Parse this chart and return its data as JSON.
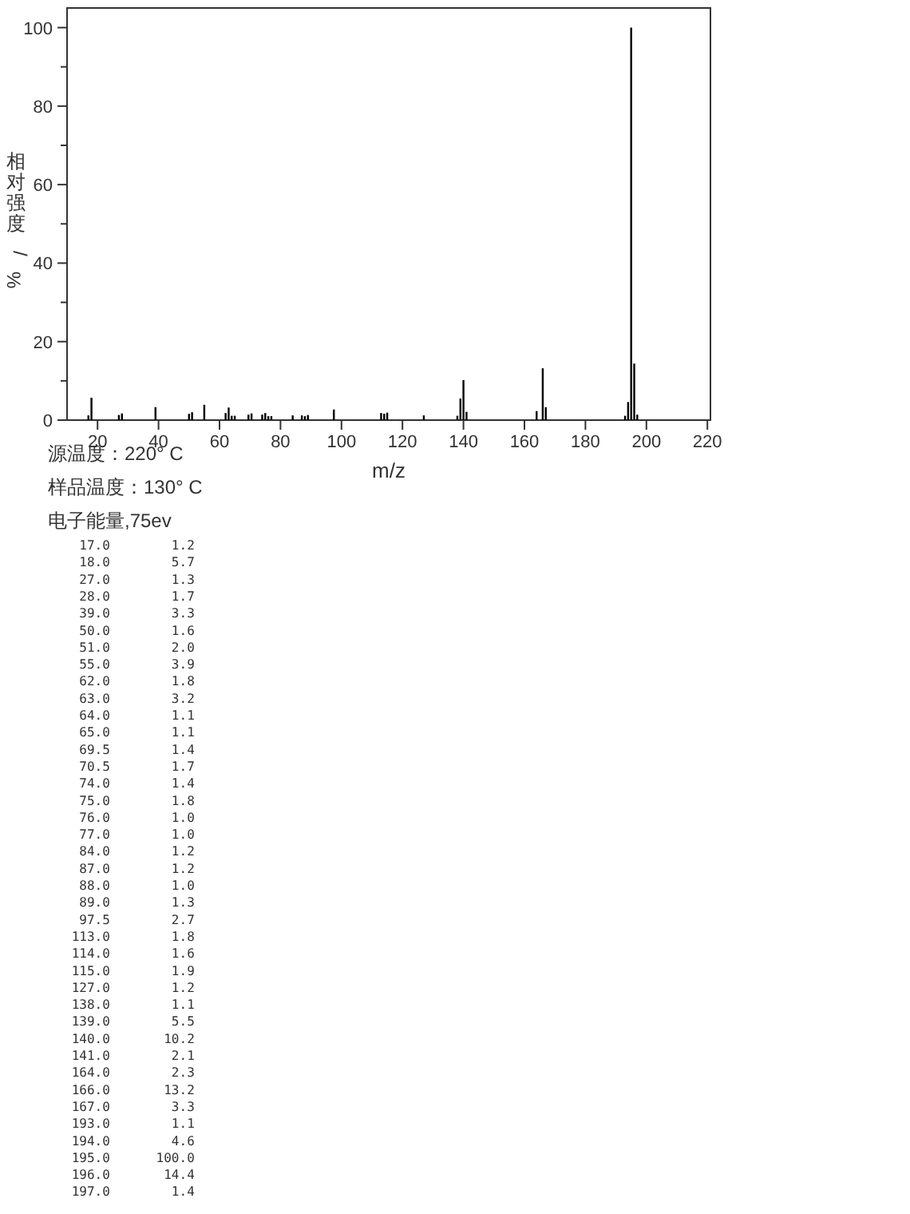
{
  "chart_data": {
    "type": "bar",
    "xlabel": "m/z",
    "ylabel": "相对强度/%",
    "x": [
      17,
      18,
      27,
      28,
      39,
      50,
      51,
      55,
      62,
      63,
      64,
      65,
      69.5,
      70.5,
      74,
      75,
      76,
      77,
      84,
      87,
      88,
      89,
      97.5,
      113,
      114,
      115,
      127,
      138,
      139,
      140,
      141,
      164,
      166,
      167,
      193,
      194,
      195,
      196,
      197
    ],
    "values": [
      1.2,
      5.7,
      1.3,
      1.7,
      3.3,
      1.6,
      2.0,
      3.9,
      1.8,
      3.2,
      1.1,
      1.1,
      1.4,
      1.7,
      1.4,
      1.8,
      1.0,
      1.0,
      1.2,
      1.2,
      1.0,
      1.3,
      2.7,
      1.8,
      1.6,
      1.9,
      1.2,
      1.1,
      5.5,
      10.2,
      2.1,
      2.3,
      13.2,
      3.3,
      1.1,
      4.6,
      100.0,
      14.4,
      1.4
    ],
    "color": "#000000",
    "xlim": [
      10,
      221
    ],
    "xticks": [
      20,
      40,
      60,
      80,
      100,
      120,
      140,
      160,
      180,
      200,
      220
    ],
    "ylim": [
      0,
      105
    ],
    "yticks": [
      0,
      {
        "value": 10,
        "label": null
      },
      20,
      {
        "value": 30,
        "label": null
      },
      40,
      {
        "value": 50,
        "label": null
      },
      60,
      {
        "value": 70,
        "label": null
      },
      80,
      {
        "value": 90,
        "label": null
      },
      100
    ],
    "annotations": [
      "源温度：220° C",
      "样品温度：130° C",
      "电子能量,75ev",
      "17.0        1.2",
      "18.0        5.7",
      "27.0        1.3",
      "28.0        1.7",
      "39.0        3.3",
      "50.0        1.6",
      "51.0        2.0",
      "55.0        3.9",
      "62.0        1.8",
      "63.0        3.2",
      "64.0        1.1",
      "65.0        1.1",
      "69.5        1.4",
      "70.5        1.7",
      "74.0        1.4",
      "75.0        1.8",
      "76.0        1.0",
      "77.0        1.0",
      "84.0        1.2",
      "87.0        1.2",
      "88.0        1.0",
      "89.0        1.3",
      "97.5        2.7",
      "113.0        1.8",
      "114.0        1.6",
      "115.0        1.9",
      "127.0        1.2",
      "138.0        1.1",
      "139.0        5.5",
      "140.0       10.2",
      "141.0        2.1",
      "164.0        2.3",
      "166.0       13.2",
      "167.0        3.3",
      "193.0        1.1",
      "194.0        4.6",
      "195.0      100.0",
      "196.0       14.4",
      "197.0        1.4"
    ]
  }
}
